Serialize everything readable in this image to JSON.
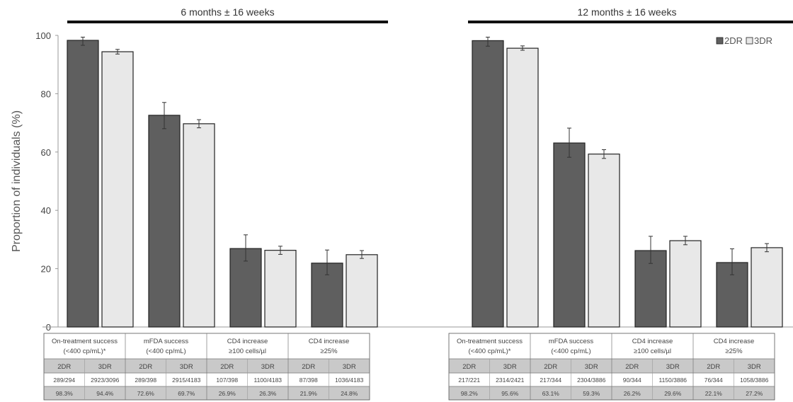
{
  "chart_data": {
    "type": "bar",
    "ylabel": "Proportion of individuals (%)",
    "ylim": [
      0,
      100
    ],
    "yticks": [
      0,
      20,
      40,
      60,
      80,
      100
    ],
    "grid": false,
    "legend": {
      "placement": "top-right",
      "entries": [
        "2DR",
        "3DR"
      ]
    },
    "colors": {
      "2DR": "#5f5f5f",
      "3DR": "#e8e8e8",
      "outline": "#222222"
    },
    "categories": [
      [
        "On-treatment success",
        "(<400 cp/mL)*"
      ],
      [
        "mFDA success",
        "(<400 cp/mL)"
      ],
      [
        "CD4 increase",
        "≥100 cells/µl"
      ],
      [
        "CD4 increase",
        "≥25%"
      ]
    ],
    "panels": [
      {
        "title": "6 months ± 16 weeks",
        "series": [
          {
            "name": "2DR",
            "values": [
              98.3,
              72.6,
              26.9,
              21.9
            ],
            "err_low": [
              96.6,
              68.0,
              22.6,
              17.9
            ],
            "err_high": [
              99.4,
              77.0,
              31.6,
              26.4
            ]
          },
          {
            "name": "3DR",
            "values": [
              94.4,
              69.7,
              26.3,
              24.8
            ],
            "err_low": [
              93.6,
              68.3,
              24.9,
              23.5
            ],
            "err_high": [
              95.2,
              71.1,
              27.7,
              26.2
            ]
          }
        ],
        "table": {
          "headers": [
            "2DR",
            "3DR",
            "2DR",
            "3DR",
            "2DR",
            "3DR",
            "2DR",
            "3DR"
          ],
          "counts": [
            "289/294",
            "2923/3096",
            "289/398",
            "2915/4183",
            "107/398",
            "1100/4183",
            "87/398",
            "1036/4183"
          ],
          "percents": [
            "98.3%",
            "94.4%",
            "72.6%",
            "69.7%",
            "26.9%",
            "26.3%",
            "21.9%",
            "24.8%"
          ]
        }
      },
      {
        "title": "12 months ± 16 weeks",
        "series": [
          {
            "name": "2DR",
            "values": [
              98.2,
              63.1,
              26.2,
              22.1
            ],
            "err_low": [
              96.3,
              58.2,
              21.8,
              17.9
            ],
            "err_high": [
              99.4,
              68.2,
              31.1,
              26.8
            ]
          },
          {
            "name": "3DR",
            "values": [
              95.6,
              59.3,
              29.6,
              27.2
            ],
            "err_low": [
              94.9,
              57.8,
              28.2,
              25.8
            ],
            "err_high": [
              96.4,
              60.8,
              31.1,
              28.6
            ]
          }
        ],
        "table": {
          "headers": [
            "2DR",
            "3DR",
            "2DR",
            "3DR",
            "2DR",
            "3DR",
            "2DR",
            "3DR"
          ],
          "counts": [
            "217/221",
            "2314/2421",
            "217/344",
            "2304/3886",
            "90/344",
            "1150/3886",
            "76/344",
            "1058/3886"
          ],
          "percents": [
            "98.2%",
            "95.6%",
            "63.1%",
            "59.3%",
            "26.2%",
            "29.6%",
            "22.1%",
            "27.2%"
          ]
        }
      }
    ]
  }
}
